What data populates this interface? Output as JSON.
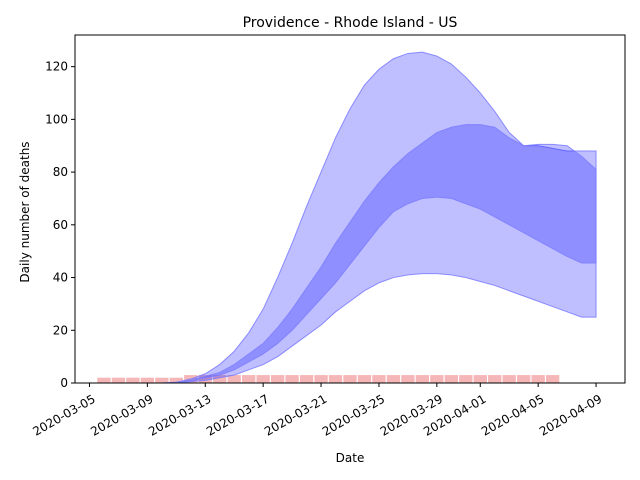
{
  "chart_data": {
    "type": "area",
    "title": "Providence - Rhode Island - US",
    "xlabel": "Date",
    "ylabel": "Daily number of deaths",
    "xlim": [
      "2020-03-04",
      "2020-04-11"
    ],
    "ylim": [
      0,
      132
    ],
    "yticks": [
      0,
      20,
      40,
      60,
      80,
      100,
      120
    ],
    "xticks": [
      "2020-03-05",
      "2020-03-09",
      "2020-03-13",
      "2020-03-17",
      "2020-03-21",
      "2020-03-25",
      "2020-03-29",
      "2020-04-01",
      "2020-04-05",
      "2020-04-09"
    ],
    "colors": {
      "band": "#0000ff",
      "band_edge": "#8080ff",
      "bars": "#f4b6b6"
    },
    "bars": {
      "x": [
        "2020-03-06",
        "2020-03-07",
        "2020-03-08",
        "2020-03-09",
        "2020-03-10",
        "2020-03-11",
        "2020-03-12",
        "2020-03-13",
        "2020-03-14",
        "2020-03-15",
        "2020-03-16",
        "2020-03-17",
        "2020-03-18",
        "2020-03-19",
        "2020-03-20",
        "2020-03-21",
        "2020-03-22",
        "2020-03-23",
        "2020-03-24",
        "2020-03-25",
        "2020-03-26",
        "2020-03-27",
        "2020-03-28",
        "2020-03-29",
        "2020-03-30",
        "2020-03-31",
        "2020-04-01",
        "2020-04-02",
        "2020-04-03",
        "2020-04-04",
        "2020-04-05",
        "2020-04-06"
      ],
      "values": [
        2,
        2,
        2,
        2,
        2,
        2,
        3,
        3,
        3,
        3,
        3,
        3,
        3,
        3,
        3,
        3,
        3,
        3,
        3,
        3,
        3,
        3,
        3,
        3,
        3,
        3,
        3,
        3,
        3,
        3,
        3,
        3
      ]
    },
    "bands": [
      {
        "x": [
          "2020-03-10",
          "2020-03-11",
          "2020-03-12",
          "2020-03-13",
          "2020-03-14",
          "2020-03-15",
          "2020-03-16",
          "2020-03-17",
          "2020-03-18",
          "2020-03-19",
          "2020-03-20",
          "2020-03-21",
          "2020-03-22",
          "2020-03-23",
          "2020-03-24",
          "2020-03-25",
          "2020-03-26",
          "2020-03-27",
          "2020-03-28",
          "2020-03-29",
          "2020-03-30",
          "2020-03-31",
          "2020-04-01",
          "2020-04-02",
          "2020-04-03",
          "2020-04-04",
          "2020-04-05",
          "2020-04-06",
          "2020-04-07",
          "2020-04-08",
          "2020-04-09"
        ],
        "lower": [
          0,
          0,
          0.5,
          1,
          2,
          3,
          5,
          7,
          10,
          14,
          18,
          22,
          27,
          31,
          35,
          38,
          40,
          41,
          41.5,
          41.5,
          41,
          40,
          38.5,
          37,
          35,
          33,
          31,
          29,
          27,
          25,
          25
        ],
        "upper": [
          0,
          0.3,
          1.5,
          3.5,
          7,
          12,
          19,
          28,
          40,
          53,
          67,
          80,
          93,
          104,
          113,
          119,
          123,
          125,
          125.5,
          124,
          121,
          116,
          110,
          103,
          95,
          90,
          90,
          89,
          88,
          88,
          88
        ]
      },
      {
        "x": [
          "2020-03-10",
          "2020-03-11",
          "2020-03-12",
          "2020-03-13",
          "2020-03-14",
          "2020-03-15",
          "2020-03-16",
          "2020-03-17",
          "2020-03-18",
          "2020-03-19",
          "2020-03-20",
          "2020-03-21",
          "2020-03-22",
          "2020-03-23",
          "2020-03-24",
          "2020-03-25",
          "2020-03-26",
          "2020-03-27",
          "2020-03-28",
          "2020-03-29",
          "2020-03-30",
          "2020-03-31",
          "2020-04-01",
          "2020-04-02",
          "2020-04-03",
          "2020-04-04",
          "2020-04-05",
          "2020-04-06",
          "2020-04-07",
          "2020-04-08",
          "2020-04-09"
        ],
        "lower": [
          0,
          0.2,
          0.8,
          2,
          3,
          5,
          8,
          11,
          15,
          20,
          26,
          32,
          38,
          45,
          52,
          59,
          65,
          68,
          70,
          70.5,
          70,
          68,
          66,
          63,
          60,
          57,
          54,
          51,
          48,
          45.5,
          45.5
        ],
        "upper": [
          0,
          0.3,
          1,
          2.5,
          4,
          7,
          11,
          15,
          21,
          28,
          36,
          44,
          53,
          61,
          69,
          76,
          82,
          87,
          91,
          95,
          97,
          98,
          98,
          97,
          93,
          90,
          90.5,
          90.5,
          90,
          86,
          81
        ]
      }
    ]
  }
}
